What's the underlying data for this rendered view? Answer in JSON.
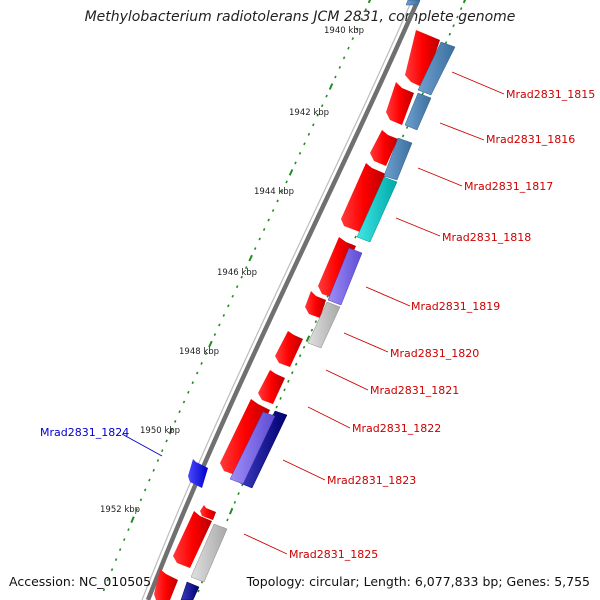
{
  "title": "Methylobacterium radiotolerans JCM 2831, complete genome",
  "footer": {
    "accession": "Accession: NC_010505",
    "topology": "Topology: circular; Length: 6,077,833 bp; Genes: 5,755"
  },
  "colors": {
    "backbone": "#888888",
    "forward_gene": "#ff0000",
    "reverse_gene": "#0000ff",
    "ticks": "#228b22",
    "label_forward": "#cc0000",
    "label_reverse": "#0000cc"
  },
  "kbp_labels": [
    "1940 kbp",
    "1942 kbp",
    "1944 kbp",
    "1946 kbp",
    "1948 kbp",
    "1950 kbp",
    "1952 kbp"
  ],
  "gene_labels": [
    {
      "id": "Mrad2831_1815",
      "strand": "forward"
    },
    {
      "id": "Mrad2831_1816",
      "strand": "forward"
    },
    {
      "id": "Mrad2831_1817",
      "strand": "forward"
    },
    {
      "id": "Mrad2831_1818",
      "strand": "forward"
    },
    {
      "id": "Mrad2831_1819",
      "strand": "forward"
    },
    {
      "id": "Mrad2831_1820",
      "strand": "forward"
    },
    {
      "id": "Mrad2831_1821",
      "strand": "forward"
    },
    {
      "id": "Mrad2831_1822",
      "strand": "forward"
    },
    {
      "id": "Mrad2831_1823",
      "strand": "forward"
    },
    {
      "id": "Mrad2831_1824",
      "strand": "reverse"
    },
    {
      "id": "Mrad2831_1825",
      "strand": "forward"
    }
  ],
  "cog_colors": {
    "steelblue": "#4682b4",
    "cyan": "#00c8c8",
    "slateblue": "#7b68ee",
    "gray": "#c0c0c0",
    "navy": "#00008b"
  }
}
